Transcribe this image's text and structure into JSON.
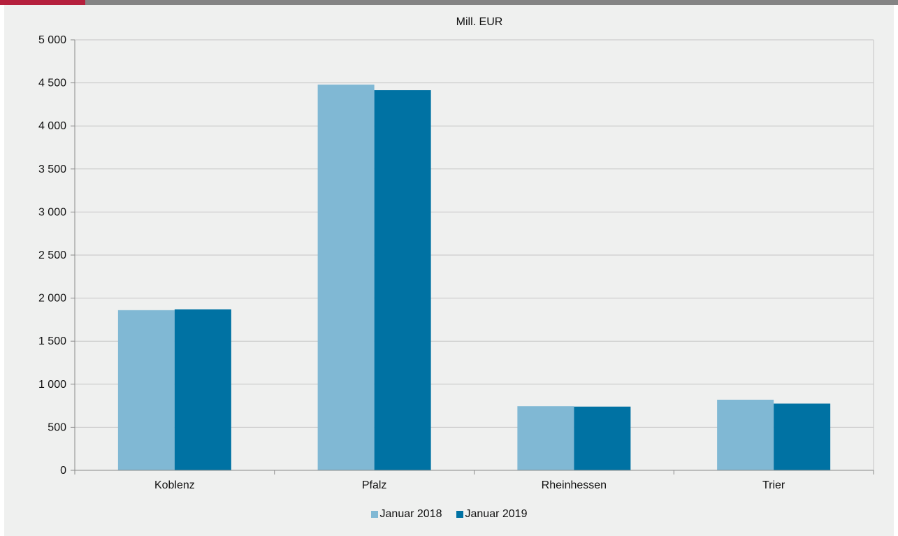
{
  "header": {
    "accent_color": "#b5203d",
    "bar_color": "#848484"
  },
  "chart_data": {
    "type": "bar",
    "title": "Mill. EUR",
    "xlabel": "",
    "ylabel": "",
    "categories": [
      "Koblenz",
      "Pfalz",
      "Rheinhessen",
      "Trier"
    ],
    "series": [
      {
        "name": "Januar 2018",
        "values": [
          1860,
          4480,
          745,
          820
        ],
        "color": "#80b8d4"
      },
      {
        "name": "Januar 2019",
        "values": [
          1870,
          4415,
          740,
          775
        ],
        "color": "#0072a3"
      }
    ],
    "ylim": [
      0,
      5000
    ],
    "yticks": [
      0,
      500,
      1000,
      1500,
      2000,
      2500,
      3000,
      3500,
      4000,
      4500,
      5000
    ],
    "ytick_labels": [
      "0",
      "500",
      "1 000",
      "1 500",
      "2 000",
      "2 500",
      "3 000",
      "3 500",
      "4 000",
      "4 500",
      "5 000"
    ],
    "grid": true,
    "legend_position": "bottom-center"
  }
}
